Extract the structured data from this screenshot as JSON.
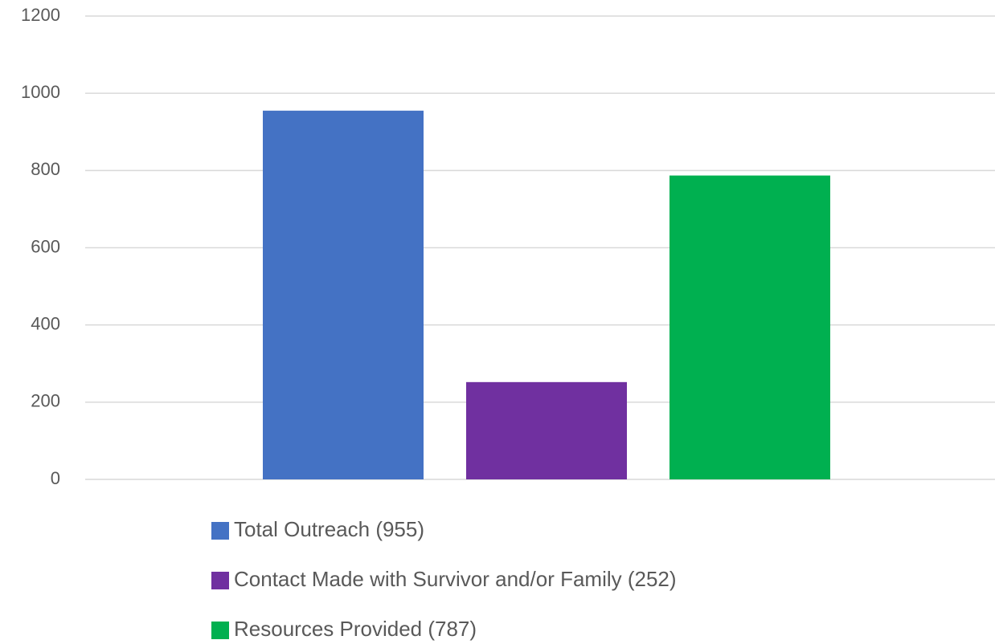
{
  "chart_data": {
    "type": "bar",
    "categories": [
      null
    ],
    "series": [
      {
        "name": "Total Outreach (955)",
        "color": "#4472c4",
        "values": [
          955
        ]
      },
      {
        "name": "Contact Made with Survivor and/or Family (252)",
        "color": "#7030a0",
        "values": [
          252
        ]
      },
      {
        "name": "Resources Provided (787)",
        "color": "#00b050",
        "values": [
          787
        ]
      }
    ],
    "ylim": [
      0,
      1200
    ],
    "yticks": [
      0,
      200,
      400,
      600,
      800,
      1000,
      1200
    ],
    "grid": true,
    "legend": "bottom"
  }
}
